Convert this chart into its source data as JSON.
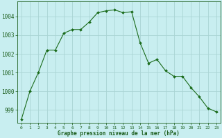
{
  "hours": [
    0,
    1,
    2,
    3,
    4,
    5,
    6,
    7,
    8,
    9,
    10,
    11,
    12,
    13,
    14,
    15,
    16,
    17,
    18,
    19,
    20,
    21,
    22,
    23
  ],
  "pressure": [
    998.5,
    1000.0,
    1001.0,
    1002.2,
    1002.2,
    1003.1,
    1003.3,
    1003.3,
    1003.7,
    1004.2,
    1004.3,
    1004.35,
    1004.2,
    1004.25,
    1002.6,
    1001.5,
    1001.7,
    1001.1,
    1000.8,
    1000.8,
    1000.2,
    999.7,
    999.1,
    998.9
  ],
  "line_color": "#1a6b1a",
  "marker_color": "#1a6b1a",
  "bg_color": "#c8eef0",
  "grid_color": "#aad4d4",
  "xlabel": "Graphe pression niveau de la mer (hPa)",
  "xlabel_color": "#1a5c1a",
  "tick_color": "#1a5c1a",
  "ylim_min": 998.3,
  "ylim_max": 1004.8,
  "yticks": [
    999,
    1000,
    1001,
    1002,
    1003,
    1004
  ]
}
